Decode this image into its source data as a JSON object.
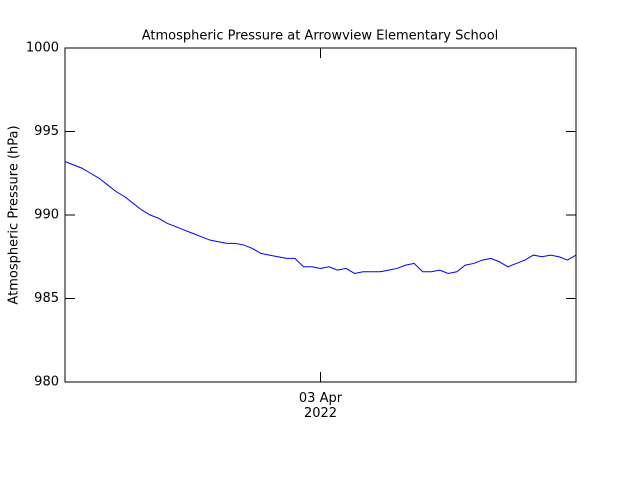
{
  "chart_data": {
    "type": "line",
    "title": "Atmospheric Pressure at Arrowview Elementary School",
    "y_label": "Atmospheric Pressure (hPa)",
    "categories": [
      null,
      null,
      null,
      null,
      null,
      null,
      null,
      null,
      null,
      null,
      null,
      null,
      null,
      null,
      null,
      null,
      null,
      null,
      null,
      null,
      null,
      null,
      null,
      null,
      null,
      null,
      null,
      null,
      null,
      null,
      "03 Apr 2022",
      null,
      null,
      null,
      null,
      null,
      null,
      null,
      null,
      null,
      null,
      null,
      null,
      null,
      null,
      null,
      null,
      null,
      null,
      null,
      null,
      null,
      null,
      null,
      null,
      null,
      null,
      null,
      null,
      null,
      null
    ],
    "series": [
      {
        "color": "#0000ff",
        "values": [
          993.2,
          993.0,
          992.8,
          992.5,
          992.2,
          991.8,
          991.4,
          991.1,
          990.7,
          990.3,
          990.0,
          989.8,
          989.5,
          989.3,
          989.1,
          988.9,
          988.7,
          988.5,
          988.4,
          988.3,
          988.3,
          988.2,
          988.0,
          987.7,
          987.6,
          987.5,
          987.4,
          987.4,
          986.9,
          986.9,
          986.8,
          986.9,
          986.7,
          986.8,
          986.5,
          986.6,
          986.6,
          986.6,
          986.7,
          986.8,
          987.0,
          987.1,
          986.6,
          986.6,
          986.7,
          986.5,
          986.6,
          987.0,
          987.1,
          987.3,
          987.4,
          987.2,
          986.9,
          987.1,
          987.3,
          987.6,
          987.5,
          987.6,
          987.5,
          987.3,
          987.6
        ]
      }
    ],
    "ylim": [
      980,
      1000
    ],
    "yticks": [
      980,
      985,
      990,
      995,
      1000
    ]
  }
}
